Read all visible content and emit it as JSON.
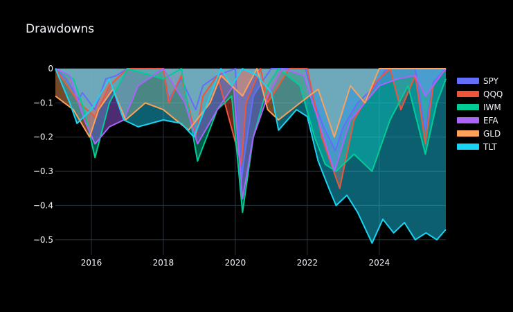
{
  "chart_data": {
    "type": "area",
    "title": "Drawdowns",
    "xlabel": "",
    "ylabel": "",
    "x_range": [
      2015.0,
      2025.85
    ],
    "ylim": [
      -0.545,
      0.0
    ],
    "x_ticks": [
      {
        "value": 2016,
        "label": "2016"
      },
      {
        "value": 2018,
        "label": "2018"
      },
      {
        "value": 2020,
        "label": "2020"
      },
      {
        "value": 2022,
        "label": "2022"
      },
      {
        "value": 2024,
        "label": "2024"
      }
    ],
    "y_ticks": [
      {
        "value": 0,
        "label": "0"
      },
      {
        "value": -0.1,
        "label": "−0.1"
      },
      {
        "value": -0.2,
        "label": "−0.2"
      },
      {
        "value": -0.3,
        "label": "−0.3"
      },
      {
        "value": -0.4,
        "label": "−0.4"
      },
      {
        "value": -0.5,
        "label": "−0.5"
      }
    ],
    "grid": true,
    "legend_position": "right",
    "background": "#000000",
    "plot_background": "#000000",
    "series": [
      {
        "name": "SPY",
        "color": "#636efa",
        "x": [
          2015.0,
          2015.3,
          2015.65,
          2015.75,
          2016.1,
          2016.4,
          2016.7,
          2017.0,
          2017.5,
          2018.0,
          2018.15,
          2018.5,
          2018.9,
          2019.1,
          2019.5,
          2020.0,
          2020.17,
          2020.22,
          2020.5,
          2020.8,
          2021.0,
          2021.5,
          2021.95,
          2022.2,
          2022.45,
          2022.78,
          2023.0,
          2023.4,
          2023.9,
          2024.2,
          2024.6,
          2025.0,
          2025.28,
          2025.5,
          2025.85
        ],
        "values": [
          0,
          -0.03,
          -0.09,
          -0.07,
          -0.12,
          -0.03,
          -0.02,
          0,
          0,
          0,
          -0.09,
          -0.03,
          -0.12,
          -0.05,
          -0.02,
          0,
          -0.33,
          -0.28,
          -0.08,
          -0.03,
          0,
          0,
          0,
          -0.1,
          -0.17,
          -0.24,
          -0.17,
          -0.1,
          -0.05,
          0,
          0,
          0,
          -0.18,
          -0.04,
          0
        ]
      },
      {
        "name": "QQQ",
        "color": "#ef553b",
        "x": [
          2015.0,
          2015.65,
          2016.1,
          2016.5,
          2017.0,
          2018.0,
          2018.15,
          2018.5,
          2018.9,
          2019.1,
          2019.5,
          2020.17,
          2020.3,
          2020.7,
          2020.9,
          2021.5,
          2022.0,
          2022.4,
          2022.9,
          2023.3,
          2023.9,
          2024.3,
          2024.6,
          2025.0,
          2025.28,
          2025.5,
          2025.85
        ],
        "values": [
          0,
          -0.1,
          -0.14,
          -0.05,
          0,
          0,
          -0.1,
          -0.02,
          -0.2,
          -0.08,
          -0.02,
          -0.28,
          -0.1,
          0,
          -0.1,
          0,
          0,
          -0.2,
          -0.35,
          -0.15,
          -0.04,
          0,
          -0.12,
          -0.02,
          -0.22,
          -0.05,
          0
        ]
      },
      {
        "name": "IWM",
        "color": "#00cc96",
        "x": [
          2015.0,
          2015.5,
          2015.8,
          2016.1,
          2016.5,
          2017.0,
          2018.0,
          2018.5,
          2018.95,
          2019.5,
          2019.9,
          2020.2,
          2020.5,
          2020.9,
          2021.2,
          2021.8,
          2022.2,
          2022.5,
          2022.8,
          2023.3,
          2023.8,
          2024.3,
          2024.8,
          2025.28,
          2025.6,
          2025.85
        ],
        "values": [
          0,
          -0.03,
          -0.12,
          -0.26,
          -0.1,
          0,
          -0.03,
          0,
          -0.27,
          -0.12,
          -0.08,
          -0.42,
          -0.2,
          -0.05,
          0,
          -0.05,
          -0.2,
          -0.28,
          -0.3,
          -0.25,
          -0.3,
          -0.15,
          -0.05,
          -0.25,
          -0.1,
          -0.03
        ]
      },
      {
        "name": "EFA",
        "color": "#ab63fa",
        "x": [
          2015.0,
          2015.4,
          2015.8,
          2016.1,
          2016.5,
          2016.9,
          2017.3,
          2018.0,
          2018.6,
          2018.95,
          2019.5,
          2019.95,
          2020.2,
          2020.5,
          2020.9,
          2021.3,
          2021.9,
          2022.3,
          2022.75,
          2023.2,
          2023.6,
          2024.0,
          2024.5,
          2025.0,
          2025.28,
          2025.85
        ],
        "values": [
          0,
          -0.02,
          -0.15,
          -0.22,
          -0.17,
          -0.15,
          -0.05,
          0,
          -0.1,
          -0.22,
          -0.12,
          -0.05,
          -0.38,
          -0.2,
          -0.08,
          0,
          -0.02,
          -0.15,
          -0.3,
          -0.15,
          -0.1,
          -0.05,
          -0.03,
          -0.02,
          -0.08,
          0
        ]
      },
      {
        "name": "GLD",
        "color": "#ffa15a",
        "x": [
          2015.0,
          2015.5,
          2015.95,
          2016.2,
          2016.6,
          2016.95,
          2017.5,
          2018.0,
          2018.7,
          2019.3,
          2019.6,
          2020.2,
          2020.6,
          2020.9,
          2021.2,
          2021.8,
          2022.3,
          2022.75,
          2023.2,
          2023.6,
          2024.0,
          2024.3,
          2025.0,
          2025.85
        ],
        "values": [
          -0.08,
          -0.12,
          -0.2,
          -0.12,
          -0.06,
          -0.15,
          -0.1,
          -0.12,
          -0.18,
          -0.1,
          -0.02,
          -0.08,
          0,
          -0.12,
          -0.15,
          -0.1,
          -0.06,
          -0.2,
          -0.05,
          -0.1,
          0,
          0,
          0,
          0
        ]
      },
      {
        "name": "TLT",
        "color": "#19d3f3",
        "x": [
          2015.0,
          2015.4,
          2015.6,
          2016.0,
          2016.5,
          2016.9,
          2017.3,
          2018.0,
          2018.5,
          2018.85,
          2019.3,
          2019.6,
          2019.9,
          2020.2,
          2020.6,
          2021.0,
          2021.2,
          2021.7,
          2022.0,
          2022.3,
          2022.6,
          2022.8,
          2023.1,
          2023.4,
          2023.8,
          2024.1,
          2024.4,
          2024.7,
          2025.0,
          2025.3,
          2025.6,
          2025.85
        ],
        "values": [
          0,
          -0.1,
          -0.16,
          -0.12,
          -0.03,
          -0.15,
          -0.17,
          -0.15,
          -0.16,
          -0.2,
          -0.08,
          0,
          -0.05,
          0,
          -0.02,
          -0.07,
          -0.18,
          -0.12,
          -0.14,
          -0.27,
          -0.35,
          -0.4,
          -0.37,
          -0.42,
          -0.51,
          -0.44,
          -0.48,
          -0.45,
          -0.5,
          -0.48,
          -0.5,
          -0.47
        ]
      }
    ]
  }
}
